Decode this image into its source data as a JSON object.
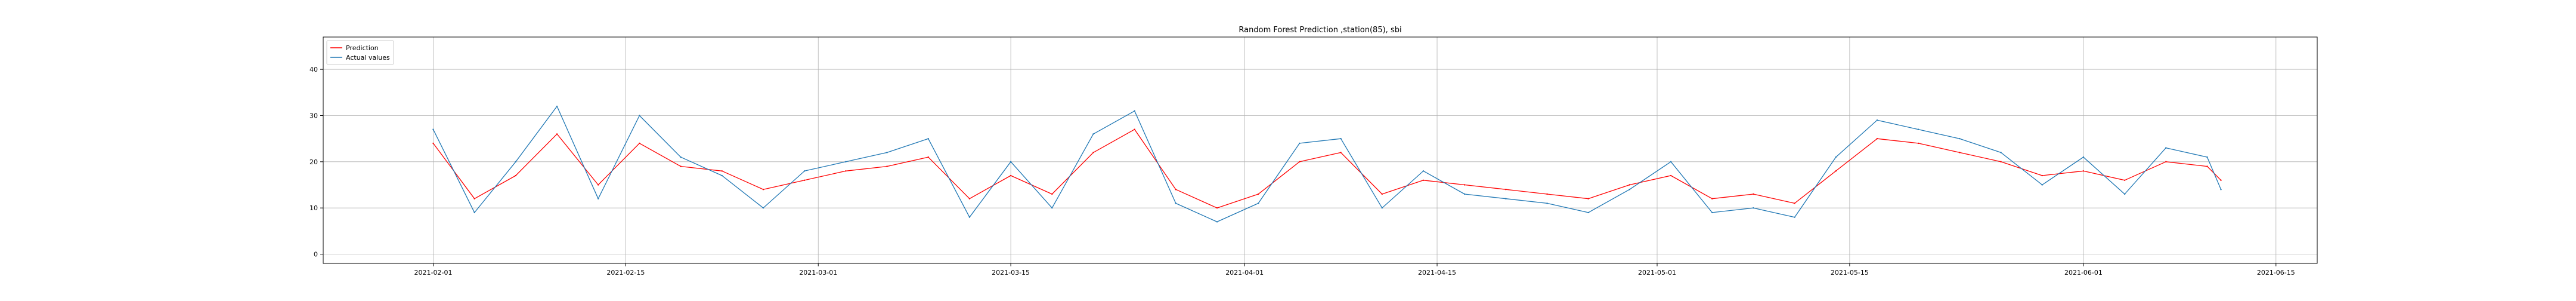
{
  "chart_data": {
    "type": "line",
    "title": "Random Forest Prediction ,station(85), sbi",
    "xlabel": "",
    "ylabel": "",
    "x_range": [
      "2021-01-24",
      "2021-06-18"
    ],
    "x_ticks": [
      "2021-02-01",
      "2021-02-15",
      "2021-03-01",
      "2021-03-15",
      "2021-04-01",
      "2021-04-15",
      "2021-05-01",
      "2021-05-15",
      "2021-06-01",
      "2021-06-15"
    ],
    "ylim": [
      -2,
      47
    ],
    "y_ticks": [
      0,
      10,
      20,
      30,
      40
    ],
    "grid": true,
    "legend_position": "top-left",
    "series": [
      {
        "name": "Prediction",
        "color": "#ff0000",
        "x": [
          "2021-02-01",
          "2021-02-04",
          "2021-02-07",
          "2021-02-10",
          "2021-02-13",
          "2021-02-16",
          "2021-02-19",
          "2021-02-22",
          "2021-02-25",
          "2021-02-28",
          "2021-03-03",
          "2021-03-06",
          "2021-03-09",
          "2021-03-12",
          "2021-03-15",
          "2021-03-18",
          "2021-03-21",
          "2021-03-24",
          "2021-03-27",
          "2021-03-30",
          "2021-04-02",
          "2021-04-05",
          "2021-04-08",
          "2021-04-11",
          "2021-04-14",
          "2021-04-17",
          "2021-04-20",
          "2021-04-23",
          "2021-04-26",
          "2021-04-29",
          "2021-05-02",
          "2021-05-05",
          "2021-05-08",
          "2021-05-11",
          "2021-05-14",
          "2021-05-17",
          "2021-05-20",
          "2021-05-23",
          "2021-05-26",
          "2021-05-29",
          "2021-06-01",
          "2021-06-04",
          "2021-06-07",
          "2021-06-10",
          "2021-06-11"
        ],
        "y": [
          24,
          12,
          17,
          26,
          15,
          24,
          19,
          18,
          14,
          16,
          18,
          19,
          21,
          12,
          17,
          13,
          22,
          27,
          14,
          10,
          13,
          20,
          22,
          13,
          16,
          15,
          14,
          13,
          12,
          15,
          17,
          12,
          13,
          11,
          18,
          25,
          24,
          22,
          20,
          17,
          18,
          16,
          20,
          19,
          16
        ]
      },
      {
        "name": "Actual values",
        "color": "#1f77b4",
        "x": [
          "2021-02-01",
          "2021-02-04",
          "2021-02-07",
          "2021-02-10",
          "2021-02-13",
          "2021-02-16",
          "2021-02-19",
          "2021-02-22",
          "2021-02-25",
          "2021-02-28",
          "2021-03-03",
          "2021-03-06",
          "2021-03-09",
          "2021-03-12",
          "2021-03-15",
          "2021-03-18",
          "2021-03-21",
          "2021-03-24",
          "2021-03-27",
          "2021-03-30",
          "2021-04-02",
          "2021-04-05",
          "2021-04-08",
          "2021-04-11",
          "2021-04-14",
          "2021-04-17",
          "2021-04-20",
          "2021-04-23",
          "2021-04-26",
          "2021-04-29",
          "2021-05-02",
          "2021-05-05",
          "2021-05-08",
          "2021-05-11",
          "2021-05-14",
          "2021-05-17",
          "2021-05-20",
          "2021-05-23",
          "2021-05-26",
          "2021-05-29",
          "2021-06-01",
          "2021-06-04",
          "2021-06-07",
          "2021-06-10",
          "2021-06-11"
        ],
        "y": [
          27,
          9,
          20,
          32,
          12,
          30,
          21,
          17,
          10,
          18,
          20,
          22,
          25,
          8,
          20,
          10,
          26,
          31,
          11,
          7,
          11,
          24,
          25,
          10,
          18,
          13,
          12,
          11,
          9,
          14,
          20,
          9,
          10,
          8,
          21,
          29,
          27,
          25,
          22,
          15,
          21,
          13,
          23,
          21,
          14
        ]
      }
    ]
  }
}
